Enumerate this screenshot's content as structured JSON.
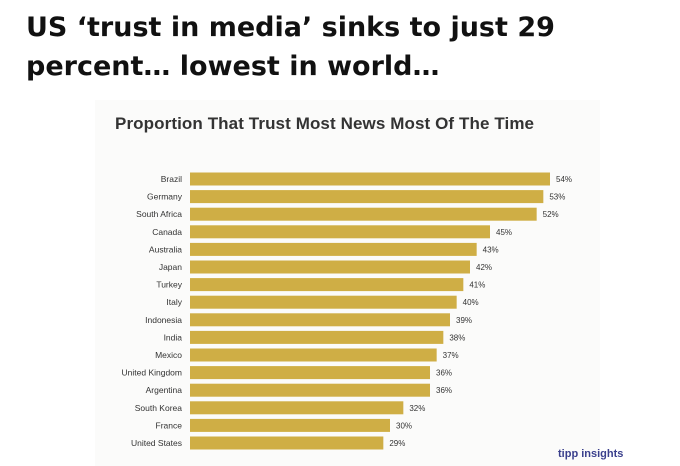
{
  "headline": "US ‘trust in media’ sinks to just 29 percent… lowest in world…",
  "watermark": "tipp insights",
  "colors": {
    "bar": "#cfae45",
    "text": "#333333",
    "headline": "#111111",
    "watermark": "#3a3f8c"
  },
  "chart_data": {
    "type": "bar",
    "orientation": "horizontal",
    "title": "Proportion That Trust Most News Most Of The Time",
    "categories": [
      "Brazil",
      "Germany",
      "South Africa",
      "Canada",
      "Australia",
      "Japan",
      "Turkey",
      "Italy",
      "Indonesia",
      "India",
      "Mexico",
      "United Kingdom",
      "Argentina",
      "South Korea",
      "France",
      "United States"
    ],
    "values": [
      54,
      53,
      52,
      45,
      43,
      42,
      41,
      40,
      39,
      38,
      37,
      36,
      36,
      32,
      30,
      29
    ],
    "value_labels": [
      "54%",
      "53%",
      "52%",
      "45%",
      "43%",
      "42%",
      "41%",
      "40%",
      "39%",
      "38%",
      "37%",
      "36%",
      "36%",
      "32%",
      "30%",
      "29%"
    ],
    "unit": "%",
    "xlim": [
      0,
      54
    ],
    "grid": false,
    "legend": "none"
  }
}
